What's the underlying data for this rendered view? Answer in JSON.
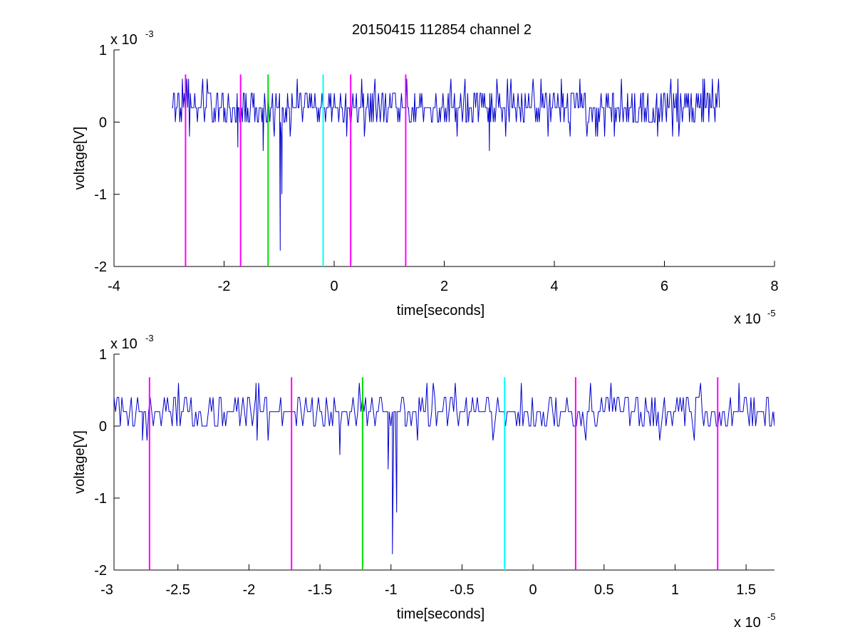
{
  "figure": {
    "title": "20150415 112854 channel 2"
  },
  "colors": {
    "signal": "#0000cc",
    "magenta_marker": "#ff00ff",
    "green_marker": "#00dd00",
    "cyan_marker": "#00ffff",
    "axes": "#000000",
    "background": "#ffffff"
  },
  "chart_data": [
    {
      "type": "line",
      "xlabel": "time[seconds]",
      "ylabel": "voltage[V]",
      "x_multiplier": "x 10",
      "x_exponent": "-5",
      "y_multiplier": "x 10",
      "y_exponent": "-3",
      "xlim": [
        -4,
        8
      ],
      "ylim": [
        -2,
        1
      ],
      "xticks": [
        -4,
        -2,
        0,
        2,
        4,
        6,
        8
      ],
      "xtick_labels": [
        "-4",
        "-2",
        "0",
        "2",
        "4",
        "6",
        "8"
      ],
      "yticks": [
        -2,
        -1,
        0,
        1
      ],
      "ytick_labels": [
        "-2",
        "-1",
        "0",
        "1"
      ],
      "grid": false,
      "series_x_range": [
        -2.95,
        7.0
      ],
      "series_baseline": 0.2,
      "quantization_step": 0.2,
      "notable_points": [
        {
          "x": -1.75,
          "y": -0.35
        },
        {
          "x": -1.29,
          "y": -0.4
        },
        {
          "x": -0.98,
          "y": -1.78
        },
        {
          "x": -0.95,
          "y": -1.0
        },
        {
          "x": 2.82,
          "y": -0.4
        },
        {
          "x": 6.7,
          "y": 0.6
        }
      ],
      "markers": [
        {
          "x": -2.7,
          "color": "magenta"
        },
        {
          "x": -1.7,
          "color": "magenta"
        },
        {
          "x": -1.2,
          "color": "green"
        },
        {
          "x": -0.2,
          "color": "cyan"
        },
        {
          "x": 0.3,
          "color": "magenta"
        },
        {
          "x": 1.3,
          "color": "magenta"
        }
      ],
      "marker_y_range": [
        -2,
        0.66
      ]
    },
    {
      "type": "line",
      "xlabel": "time[seconds]",
      "ylabel": "voltage[V]",
      "x_multiplier": "x 10",
      "x_exponent": "-5",
      "y_multiplier": "x 10",
      "y_exponent": "-3",
      "xlim": [
        -2.95,
        1.7
      ],
      "ylim": [
        -2,
        1
      ],
      "xticks": [
        -3,
        -2.5,
        -2,
        -1.5,
        -1,
        -0.5,
        0,
        0.5,
        1,
        1.5
      ],
      "xtick_labels": [
        "-3",
        "-2.5",
        "-2",
        "-1.5",
        "-1",
        "-0.5",
        "0",
        "0.5",
        "1",
        "1.5"
      ],
      "yticks": [
        -2,
        -1,
        0,
        1
      ],
      "ytick_labels": [
        "-2",
        "-1",
        "0",
        "1"
      ],
      "grid": false,
      "series_x_range": [
        -2.95,
        1.7
      ],
      "series_baseline": 0.2,
      "quantization_step": 0.2,
      "notable_points": [
        {
          "x": -2.9,
          "y": 0.2
        },
        {
          "x": -2.75,
          "y": -0.2
        },
        {
          "x": -1.95,
          "y": 0.6
        },
        {
          "x": -1.36,
          "y": -0.4
        },
        {
          "x": -1.02,
          "y": -0.6
        },
        {
          "x": -0.99,
          "y": -1.78
        },
        {
          "x": -0.96,
          "y": -1.2
        },
        {
          "x": -0.9,
          "y": 0.0
        },
        {
          "x": 1.45,
          "y": 0.6
        },
        {
          "x": 1.7,
          "y": 0.0
        }
      ],
      "markers": [
        {
          "x": -2.7,
          "color": "magenta"
        },
        {
          "x": -1.7,
          "color": "magenta"
        },
        {
          "x": -1.2,
          "color": "green"
        },
        {
          "x": -0.2,
          "color": "cyan"
        },
        {
          "x": 0.3,
          "color": "magenta"
        },
        {
          "x": 1.3,
          "color": "magenta"
        }
      ],
      "marker_y_range": [
        -2,
        0.68
      ]
    }
  ]
}
